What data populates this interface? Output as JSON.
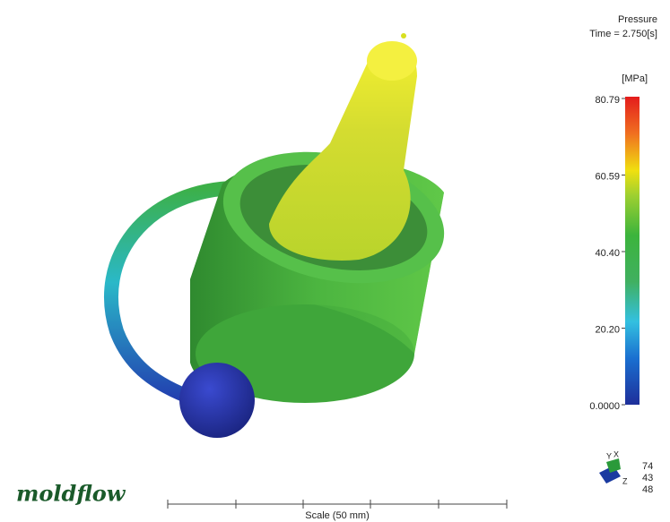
{
  "header": {
    "result": "Pressure",
    "time": "Time = 2.750[s]"
  },
  "legend": {
    "unit": "[MPa]",
    "ticks": [
      {
        "value": 0,
        "label": "0.0000"
      },
      {
        "value": 20.2,
        "label": "20.20"
      },
      {
        "value": 40.4,
        "label": "40.40"
      },
      60.59,
      80.79
    ]
  },
  "scale": {
    "label": "Scale (50 mm)"
  },
  "logo": "moldflow",
  "triad": {
    "axes": [
      "X",
      "Y",
      "Z"
    ],
    "angles": [
      74,
      43,
      48
    ]
  }
}
